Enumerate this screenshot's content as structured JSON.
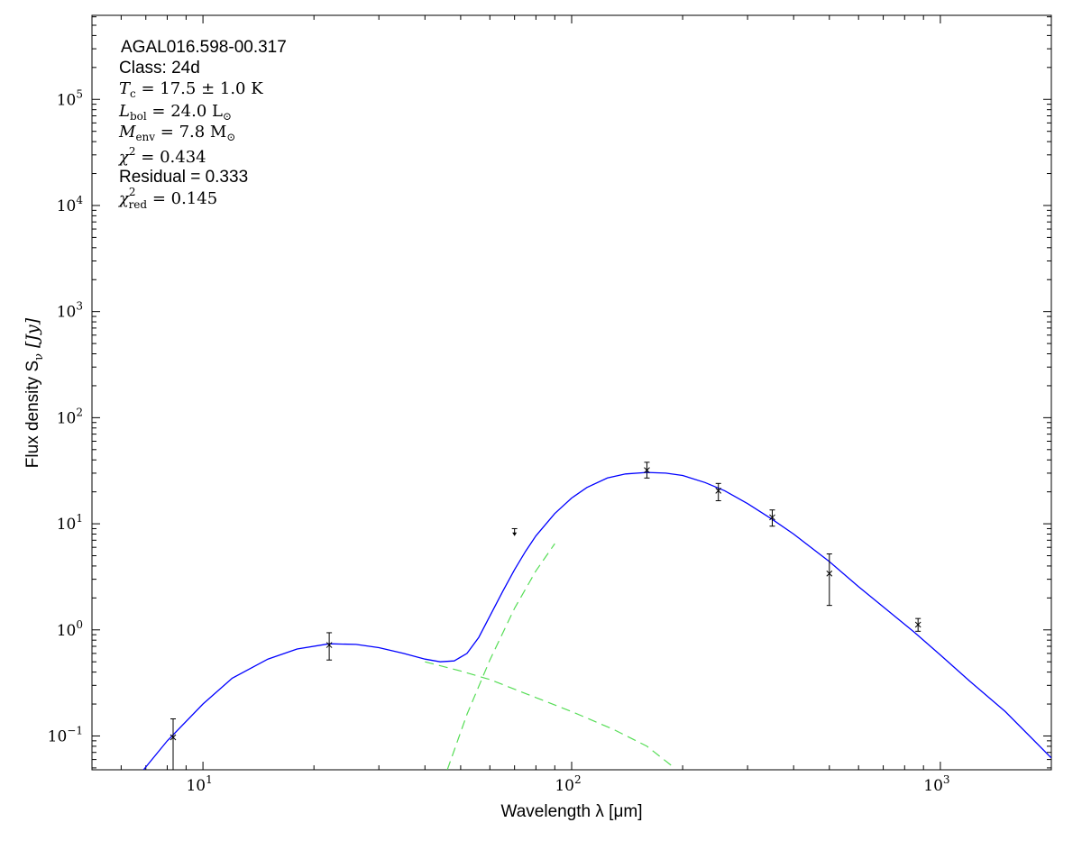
{
  "chart_data": {
    "type": "line",
    "xlabel": "Wavelength λ [μm]",
    "ylabel": "Flux density S",
    "ylabel_sub": "ν",
    "ylabel_unit": "[Jy]",
    "x_scale": "log",
    "y_scale": "log",
    "xlim": [
      5.0,
      2000.0
    ],
    "ylim": [
      0.048,
      620000.0
    ],
    "x_ticks": [
      {
        "value": 10,
        "base": "10",
        "exp": "1"
      },
      {
        "value": 100,
        "base": "10",
        "exp": "2"
      },
      {
        "value": 1000,
        "base": "10",
        "exp": "3"
      }
    ],
    "y_ticks": [
      {
        "value": 0.1,
        "base": "10",
        "exp": "−1"
      },
      {
        "value": 1,
        "base": "10",
        "exp": "0"
      },
      {
        "value": 10,
        "base": "10",
        "exp": "1"
      },
      {
        "value": 100,
        "base": "10",
        "exp": "2"
      },
      {
        "value": 1000,
        "base": "10",
        "exp": "3"
      },
      {
        "value": 10000,
        "base": "10",
        "exp": "4"
      },
      {
        "value": 100000,
        "base": "10",
        "exp": "5"
      }
    ],
    "annotations": {
      "source": "AGAL016.598-00.317",
      "class": "Class: 24d",
      "tc_label": "T",
      "tc_sub": "c",
      "tc_value": " = 17.5 ± 1.0 K",
      "lbol_label": "L",
      "lbol_sub": "bol",
      "lbol_value": " = 24.0 L",
      "lbol_unit_sub": "⊙",
      "menv_label": "M",
      "menv_sub": "env",
      "menv_value": " = 7.8 M",
      "menv_unit_sub": "⊙",
      "chi2_label": "χ",
      "chi2_sup": "2",
      "chi2_value": " = 0.434",
      "residual": "Residual = 0.333",
      "chired_label": "χ",
      "chired_sup": "2",
      "chired_sub": "red",
      "chired_value": " = 0.145"
    },
    "series": [
      {
        "color": "#0000ff",
        "style": "solid",
        "x": [
          6.9,
          8,
          10,
          12,
          15,
          18,
          22,
          26,
          30,
          35,
          40,
          44,
          48,
          52,
          56,
          60,
          65,
          70,
          75,
          80,
          90,
          100,
          110,
          125,
          140,
          160,
          180,
          200,
          230,
          260,
          300,
          350,
          400,
          500,
          600,
          700,
          850,
          1000,
          1200,
          1500,
          2000
        ],
        "y": [
          0.048,
          0.09,
          0.2,
          0.35,
          0.53,
          0.66,
          0.74,
          0.73,
          0.68,
          0.6,
          0.53,
          0.5,
          0.51,
          0.6,
          0.85,
          1.35,
          2.3,
          3.7,
          5.5,
          7.7,
          12.5,
          17.5,
          22,
          27,
          29.5,
          30.5,
          30,
          28.5,
          24.5,
          20.5,
          15.5,
          11,
          8,
          4.4,
          2.55,
          1.65,
          0.95,
          0.58,
          0.33,
          0.17,
          0.062
        ]
      },
      {
        "color": "#55dd55",
        "style": "dashed",
        "x": [
          40,
          50,
          60,
          80,
          100,
          130,
          160,
          190
        ],
        "y": [
          0.5,
          0.41,
          0.34,
          0.23,
          0.17,
          0.115,
          0.08,
          0.05
        ]
      },
      {
        "color": "#55dd55",
        "style": "dashed",
        "x": [
          46,
          52,
          60,
          70,
          80,
          90
        ],
        "y": [
          0.048,
          0.16,
          0.52,
          1.6,
          3.6,
          6.5
        ]
      }
    ],
    "data_points": [
      {
        "x": 8.3,
        "y": 0.097,
        "lo": 0.048,
        "hi": 0.145
      },
      {
        "x": 22,
        "y": 0.72,
        "lo": 0.52,
        "hi": 0.94
      },
      {
        "x": 160,
        "y": 32,
        "lo": 27,
        "hi": 38
      },
      {
        "x": 250,
        "y": 20.5,
        "lo": 16.5,
        "hi": 24
      },
      {
        "x": 350,
        "y": 11.5,
        "lo": 9.5,
        "hi": 13.5
      },
      {
        "x": 500,
        "y": 3.4,
        "lo": 1.7,
        "hi": 5.2
      },
      {
        "x": 870,
        "y": 1.12,
        "lo": 0.97,
        "hi": 1.28
      }
    ],
    "upper_limits": [
      {
        "x": 70,
        "y": 9.0,
        "y_end": 7.8
      }
    ]
  }
}
